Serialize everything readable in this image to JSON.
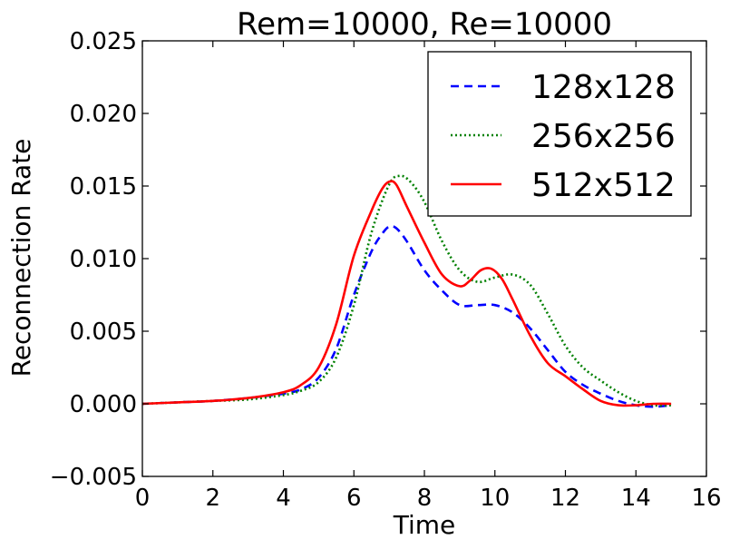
{
  "chart_data": {
    "type": "line",
    "title": "Rem=10000, Re=10000",
    "xlabel": "Time",
    "ylabel": "Reconnection Rate",
    "xlim": [
      0,
      16
    ],
    "ylim": [
      -0.005,
      0.025
    ],
    "xticks": [
      "0",
      "2",
      "4",
      "6",
      "8",
      "10",
      "12",
      "14",
      "16"
    ],
    "yticks": [
      "−0.005",
      "0.000",
      "0.005",
      "0.010",
      "0.015",
      "0.020",
      "0.025"
    ],
    "grid": false,
    "legend_position": "top-right",
    "series": [
      {
        "name": "128x128",
        "color": "#0000ff",
        "style": "dashed",
        "x": [
          0,
          1,
          2,
          3,
          4,
          4.5,
          5,
          5.5,
          6,
          6.5,
          6.8,
          7.0,
          7.2,
          7.5,
          8,
          8.5,
          9,
          9.5,
          10,
          10.5,
          11,
          11.5,
          12,
          12.5,
          13,
          13.5,
          14,
          14.5,
          15
        ],
        "y": [
          0,
          0.0001,
          0.0002,
          0.0004,
          0.0007,
          0.001,
          0.0018,
          0.0038,
          0.0075,
          0.0105,
          0.0117,
          0.0122,
          0.0121,
          0.0112,
          0.0092,
          0.0078,
          0.0068,
          0.0068,
          0.0068,
          0.0063,
          0.0052,
          0.0037,
          0.0022,
          0.0013,
          0.0007,
          0.0002,
          -0.0001,
          -0.0002,
          -0.0001
        ]
      },
      {
        "name": "256x256",
        "color": "#008000",
        "style": "dotted",
        "x": [
          0,
          1,
          2,
          3,
          4,
          4.5,
          5,
          5.5,
          6,
          6.5,
          7.0,
          7.3,
          7.6,
          8,
          8.5,
          9,
          9.5,
          10,
          10.5,
          11,
          11.5,
          12,
          12.5,
          13,
          13.5,
          14,
          14.5,
          15
        ],
        "y": [
          0,
          0.0001,
          0.0002,
          0.0003,
          0.0006,
          0.0009,
          0.0015,
          0.0032,
          0.0068,
          0.0118,
          0.0151,
          0.0157,
          0.0153,
          0.0139,
          0.0112,
          0.0092,
          0.0084,
          0.0087,
          0.0089,
          0.0082,
          0.0062,
          0.004,
          0.0025,
          0.0016,
          0.0008,
          0.0002,
          -0.0001,
          -0.0001
        ]
      },
      {
        "name": "512x512",
        "color": "#ff0000",
        "style": "solid",
        "x": [
          0,
          1,
          2,
          3,
          4,
          4.5,
          5,
          5.5,
          6,
          6.5,
          6.8,
          7.0,
          7.2,
          7.5,
          8,
          8.5,
          9,
          9.3,
          9.6,
          9.9,
          10.2,
          10.5,
          11,
          11.5,
          12,
          12.5,
          13,
          13.5,
          14,
          14.5,
          15
        ],
        "y": [
          0,
          0.0001,
          0.0002,
          0.0004,
          0.0008,
          0.0013,
          0.0025,
          0.0055,
          0.0102,
          0.0133,
          0.0148,
          0.0153,
          0.0151,
          0.0136,
          0.0111,
          0.0089,
          0.0081,
          0.0085,
          0.0092,
          0.0093,
          0.0086,
          0.0072,
          0.0047,
          0.0028,
          0.0019,
          0.001,
          0.0002,
          -0.0001,
          -0.0001,
          0.0,
          0.0
        ]
      }
    ]
  }
}
